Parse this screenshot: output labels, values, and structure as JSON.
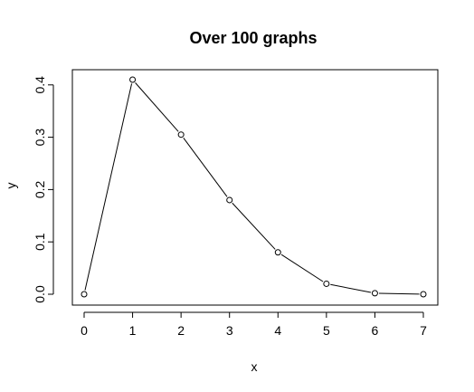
{
  "chart_data": {
    "type": "line",
    "title": "Over 100 graphs",
    "xlabel": "x",
    "ylabel": "y",
    "x": [
      0,
      1,
      2,
      3,
      4,
      5,
      6,
      7
    ],
    "series": [
      {
        "values": [
          0.0,
          0.41,
          0.305,
          0.18,
          0.08,
          0.02,
          0.002,
          0.0
        ]
      }
    ],
    "x_ticks": [
      "0",
      "1",
      "2",
      "3",
      "4",
      "5",
      "6",
      "7"
    ],
    "y_ticks": [
      "0.0",
      "0.1",
      "0.2",
      "0.3",
      "0.4"
    ],
    "xlim": [
      0,
      7
    ],
    "ylim": [
      0,
      0.41
    ],
    "grid": false,
    "markers": "open-circle",
    "colors": {
      "line": "#000000",
      "axis": "#000000",
      "background": "#ffffff"
    }
  }
}
